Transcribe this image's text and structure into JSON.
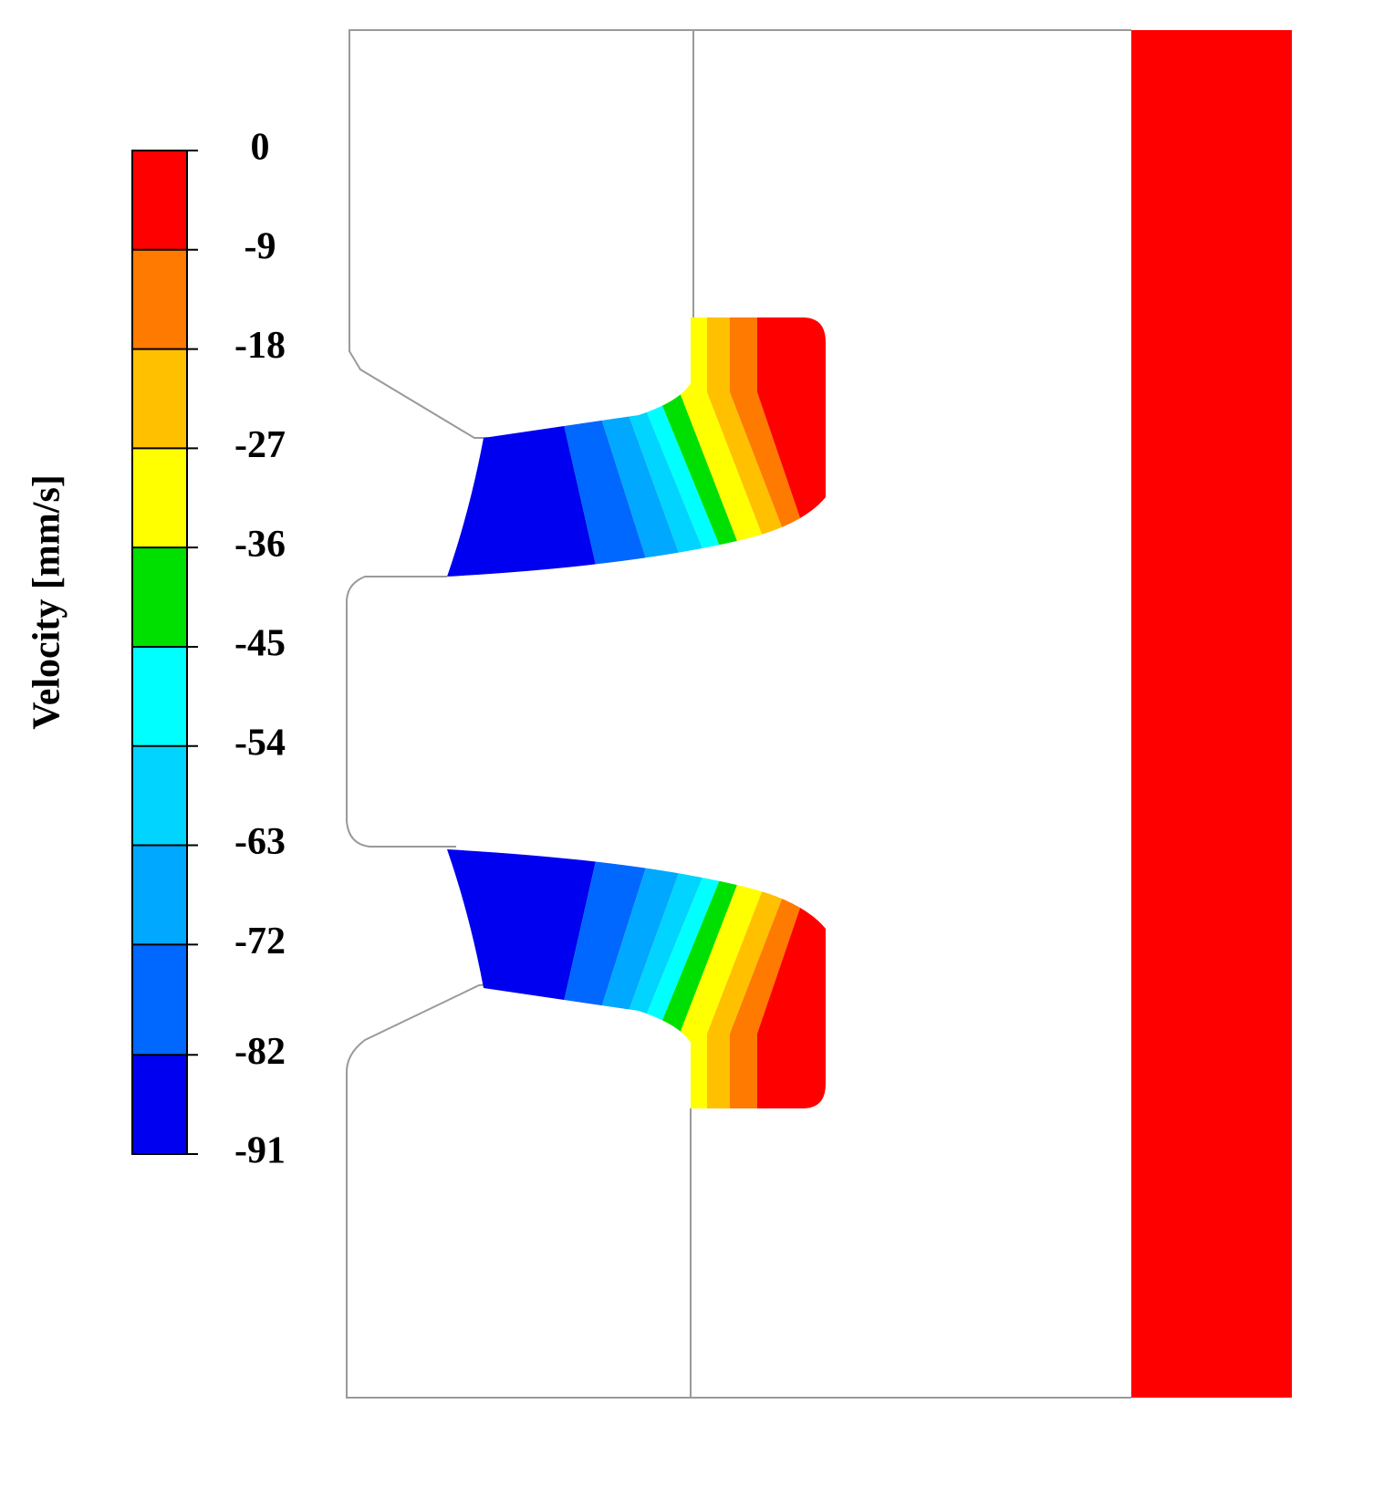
{
  "chart_data": {
    "type": "contour",
    "colorbar_label": "Velocity [mm/s]",
    "ylim": [
      -91,
      0
    ],
    "yticks": [
      0,
      -9,
      -18,
      -27,
      -36,
      -45,
      -54,
      -63,
      -72,
      -82,
      -91
    ],
    "colors": [
      "#ff0000",
      "#ff7a00",
      "#ffc000",
      "#ffff00",
      "#00e000",
      "#00ffff",
      "#00d4ff",
      "#00a8ff",
      "#0068ff",
      "#0000f0"
    ]
  }
}
